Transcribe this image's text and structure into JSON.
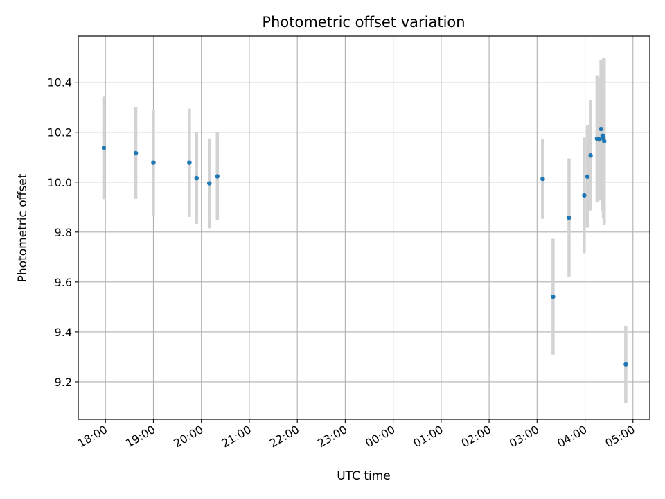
{
  "chart_data": {
    "type": "scatter",
    "title": "Photometric offset variation",
    "xlabel": "UTC time",
    "ylabel": "Photometric offset",
    "x_unit": "hours since midnight UTC (negative = previous evening)",
    "xlim": [
      "17:26",
      "05:21"
    ],
    "ylim": [
      9.05,
      10.585
    ],
    "x_ticks": [
      "18:00",
      "19:00",
      "20:00",
      "21:00",
      "22:00",
      "23:00",
      "00:00",
      "01:00",
      "02:00",
      "03:00",
      "04:00",
      "05:00"
    ],
    "y_ticks": [
      "9.2",
      "9.4",
      "9.6",
      "9.8",
      "10.0",
      "10.2",
      "10.4"
    ],
    "grid": true,
    "marker_color": "#1f77b4",
    "errorbar_color": "#d3d3d3",
    "series": [
      {
        "points": [
          {
            "time": "17:58",
            "y": 10.137,
            "yerr": 0.205
          },
          {
            "time": "18:38",
            "y": 10.116,
            "yerr": 0.183
          },
          {
            "time": "19:00",
            "y": 10.078,
            "yerr": 0.213
          },
          {
            "time": "19:45",
            "y": 10.078,
            "yerr": 0.217
          },
          {
            "time": "19:54",
            "y": 10.016,
            "yerr": 0.183
          },
          {
            "time": "20:10",
            "y": 9.995,
            "yerr": 0.18
          },
          {
            "time": "20:20",
            "y": 10.023,
            "yerr": 0.175
          },
          {
            "time": "03:07",
            "y": 10.013,
            "yerr": 0.16
          },
          {
            "time": "03:20",
            "y": 9.541,
            "yerr": 0.232
          },
          {
            "time": "03:40",
            "y": 9.857,
            "yerr": 0.238
          },
          {
            "time": "03:59",
            "y": 9.947,
            "yerr": 0.232
          },
          {
            "time": "04:03",
            "y": 10.022,
            "yerr": 0.205
          },
          {
            "time": "04:07",
            "y": 10.107,
            "yerr": 0.22
          },
          {
            "time": "04:15",
            "y": 10.174,
            "yerr": 0.254
          },
          {
            "time": "04:18",
            "y": 10.171,
            "yerr": 0.245
          },
          {
            "time": "04:20",
            "y": 10.213,
            "yerr": 0.275
          },
          {
            "time": "04:22",
            "y": 10.186,
            "yerr": 0.3
          },
          {
            "time": "04:23",
            "y": 10.176,
            "yerr": 0.32
          },
          {
            "time": "04:24",
            "y": 10.164,
            "yerr": 0.335
          },
          {
            "time": "04:51",
            "y": 9.27,
            "yerr": 0.155
          }
        ]
      }
    ]
  }
}
